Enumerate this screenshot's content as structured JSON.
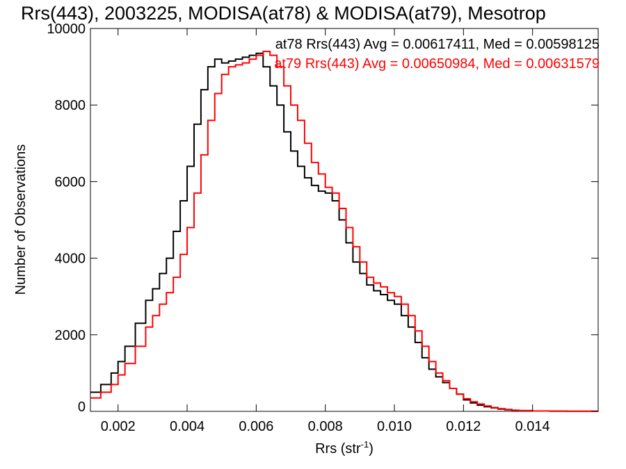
{
  "chart_data": {
    "type": "line",
    "title": "Rrs(443), 2003225, MODISA(at78) & MODISA(at79), Mesotrop",
    "xlabel": "Rrs (str",
    "xlabel_sup": "-1",
    "xlabel_close": ")",
    "ylabel": "Number of Observations",
    "xlim": [
      0.0012,
      0.0159
    ],
    "ylim": [
      0,
      10000
    ],
    "x_ticks": [
      0.002,
      0.004,
      0.006,
      0.008,
      0.01,
      0.012,
      0.014
    ],
    "x_tick_labels": [
      "0.002",
      "0.004",
      "0.006",
      "0.008",
      "0.010",
      "0.012",
      "0.014"
    ],
    "y_ticks": [
      0,
      2000,
      4000,
      6000,
      8000,
      10000
    ],
    "y_tick_labels": [
      "0",
      "2000",
      "4000",
      "6000",
      "8000",
      "10000"
    ],
    "grid": false,
    "legend": [
      {
        "text": "at78 Rrs(443) Avg = 0.00617411, Med = 0.00598125",
        "color": "#000000"
      },
      {
        "text": "at79 Rrs(443) Avg = 0.00650984, Med = 0.00631579",
        "color": "#ff0000"
      }
    ],
    "series": [
      {
        "color": "#000000",
        "x": [
          0.0012,
          0.0015,
          0.0018,
          0.002,
          0.0022,
          0.0025,
          0.0028,
          0.003,
          0.0032,
          0.0034,
          0.0036,
          0.0038,
          0.004,
          0.0042,
          0.0044,
          0.0046,
          0.0048,
          0.005,
          0.0052,
          0.0054,
          0.0056,
          0.0058,
          0.006,
          0.0062,
          0.0064,
          0.0066,
          0.0068,
          0.007,
          0.0072,
          0.0074,
          0.0076,
          0.0078,
          0.008,
          0.0082,
          0.0084,
          0.0086,
          0.0088,
          0.009,
          0.0092,
          0.0094,
          0.0096,
          0.0098,
          0.01,
          0.0102,
          0.0104,
          0.0106,
          0.0108,
          0.011,
          0.0112,
          0.0114,
          0.0116,
          0.0118,
          0.012,
          0.0122,
          0.0124,
          0.0126,
          0.0128,
          0.013,
          0.0132,
          0.0134,
          0.0136,
          0.014,
          0.0145,
          0.015,
          0.0159
        ],
        "y": [
          500,
          700,
          1000,
          1300,
          1700,
          2300,
          2900,
          3200,
          3600,
          4000,
          4700,
          5500,
          6400,
          7500,
          8400,
          9000,
          9200,
          9100,
          9150,
          9200,
          9250,
          9300,
          9350,
          9000,
          8500,
          8000,
          7300,
          6800,
          6400,
          6100,
          5900,
          5750,
          5700,
          5500,
          5000,
          4400,
          3900,
          3600,
          3300,
          3150,
          3050,
          2900,
          2800,
          2500,
          2200,
          1800,
          1400,
          1100,
          900,
          750,
          600,
          450,
          300,
          220,
          160,
          120,
          90,
          60,
          40,
          25,
          15,
          8,
          4,
          2,
          0
        ]
      },
      {
        "color": "#ff0000",
        "x": [
          0.0012,
          0.0015,
          0.0018,
          0.002,
          0.0022,
          0.0025,
          0.0028,
          0.003,
          0.0032,
          0.0034,
          0.0036,
          0.0038,
          0.004,
          0.0042,
          0.0044,
          0.0046,
          0.0048,
          0.005,
          0.0052,
          0.0054,
          0.0056,
          0.0058,
          0.006,
          0.0062,
          0.0064,
          0.0066,
          0.0068,
          0.007,
          0.0072,
          0.0074,
          0.0076,
          0.0078,
          0.008,
          0.0082,
          0.0084,
          0.0086,
          0.0088,
          0.009,
          0.0092,
          0.0094,
          0.0096,
          0.0098,
          0.01,
          0.0102,
          0.0104,
          0.0106,
          0.0108,
          0.011,
          0.0112,
          0.0114,
          0.0116,
          0.0118,
          0.012,
          0.0122,
          0.0124,
          0.0126,
          0.0128,
          0.013,
          0.0132,
          0.0134,
          0.0136,
          0.014,
          0.0145,
          0.015,
          0.0159
        ],
        "y": [
          350,
          500,
          700,
          950,
          1250,
          1700,
          2200,
          2500,
          2800,
          3100,
          3500,
          4100,
          4800,
          5700,
          6700,
          7600,
          8300,
          8800,
          9000,
          9050,
          9100,
          9200,
          9300,
          9400,
          9300,
          9000,
          8500,
          8000,
          7600,
          7000,
          6500,
          6200,
          5850,
          5700,
          5300,
          4800,
          4300,
          3900,
          3500,
          3350,
          3250,
          3100,
          3000,
          2800,
          2500,
          2100,
          1700,
          1300,
          1000,
          800,
          600,
          450,
          330,
          250,
          190,
          140,
          100,
          70,
          50,
          30,
          20,
          10,
          5,
          2,
          0
        ]
      }
    ]
  }
}
